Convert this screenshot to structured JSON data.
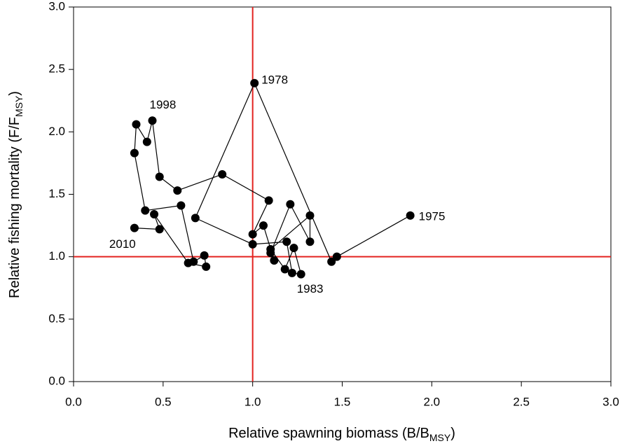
{
  "chart_data": {
    "type": "line",
    "xlabel": [
      "Relative spawning biomass (B/B",
      "MSY",
      ")"
    ],
    "ylabel": [
      "Relative fishing mortality (F/F",
      "MSY",
      ")"
    ],
    "x": [
      1.88,
      1.47,
      1.44,
      1.01,
      0.68,
      1.0,
      1.19,
      1.22,
      1.27,
      1.23,
      1.18,
      1.1,
      1.32,
      1.32,
      1.21,
      1.1,
      1.12,
      1.06,
      1.0,
      1.09,
      0.83,
      0.58,
      0.48,
      0.44,
      0.41,
      0.35,
      0.34,
      0.4,
      0.6,
      0.67,
      0.73,
      0.74,
      0.64,
      0.45,
      0.48,
      0.34
    ],
    "values": [
      1.33,
      1.0,
      0.96,
      2.39,
      1.31,
      1.1,
      1.12,
      0.87,
      0.86,
      1.07,
      0.9,
      1.06,
      1.33,
      1.12,
      1.42,
      1.03,
      0.97,
      1.25,
      1.18,
      1.45,
      1.66,
      1.53,
      1.64,
      2.09,
      1.92,
      2.06,
      1.83,
      1.37,
      1.41,
      0.96,
      1.01,
      0.92,
      0.95,
      1.34,
      1.22,
      1.23
    ],
    "point_labels": [
      "1975",
      null,
      null,
      "1978",
      null,
      null,
      null,
      null,
      "1983",
      null,
      null,
      null,
      null,
      null,
      null,
      null,
      null,
      null,
      null,
      null,
      null,
      null,
      null,
      "1998",
      null,
      null,
      null,
      null,
      null,
      null,
      null,
      null,
      null,
      null,
      null,
      "2010"
    ],
    "color": "#000000",
    "reference_lines": {
      "x": 1,
      "y": 1,
      "color": "#e3231f"
    },
    "xlim": [
      0,
      3
    ],
    "ylim": [
      0,
      3
    ],
    "xticks": [
      {
        "value": 0,
        "label": "0.0"
      },
      0.5,
      {
        "value": 1,
        "label": "1.0"
      },
      1.5,
      {
        "value": 2,
        "label": "2.0"
      },
      2.5,
      {
        "value": 3,
        "label": "3.0"
      }
    ],
    "yticks": [
      {
        "value": 0,
        "label": "0.0"
      },
      0.5,
      {
        "value": 1,
        "label": "1.0"
      },
      1.5,
      {
        "value": 2,
        "label": "2.0"
      },
      2.5,
      {
        "value": 3,
        "label": "3.0"
      }
    ]
  }
}
